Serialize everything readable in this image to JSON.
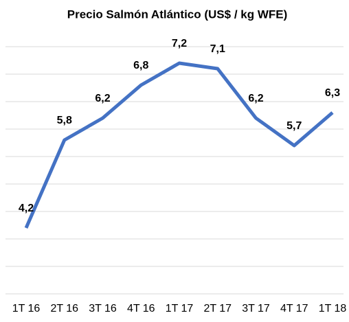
{
  "chart_data": {
    "type": "line",
    "title": "Precio Salmón Atlántico (US$ / kg WFE)",
    "categories": [
      "1T 16",
      "2T 16",
      "3T 16",
      "4T 16",
      "1T 17",
      "2T 17",
      "3T 17",
      "4T 17",
      "1T 18"
    ],
    "series": [
      {
        "name": "Precio",
        "color": "#4472c4",
        "values": [
          4.2,
          5.8,
          6.2,
          6.8,
          7.2,
          7.1,
          6.2,
          5.7,
          6.3
        ],
        "value_labels": [
          "4,2",
          "5,8",
          "6,2",
          "6,8",
          "7,2",
          "7,1",
          "6,2",
          "5,7",
          "6,3"
        ]
      }
    ],
    "ylim": [
      3,
      7.5
    ],
    "yticks": [
      3,
      3.5,
      4,
      4.5,
      5,
      5.5,
      6,
      6.5,
      7,
      7.5
    ],
    "grid": true
  }
}
